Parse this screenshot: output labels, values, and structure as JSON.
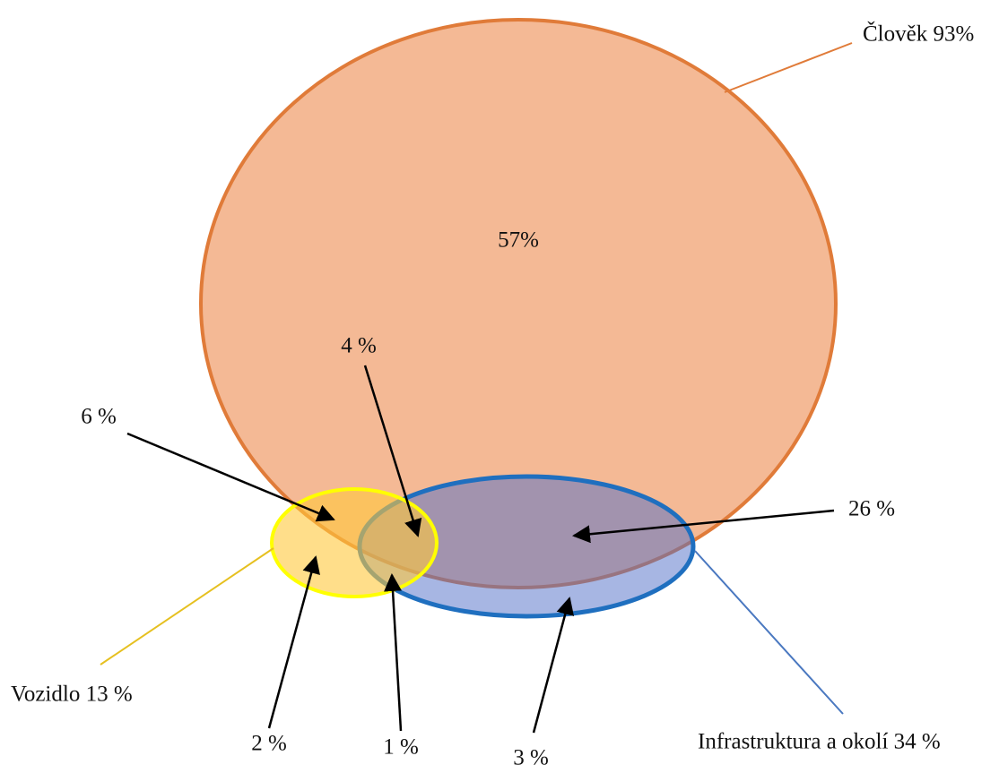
{
  "sets": [
    {
      "label": "Člověk 93%"
    },
    {
      "label": "Vozidlo  13 %"
    },
    {
      "label": "Infrastruktura a okolí  34 %"
    }
  ],
  "regions": [
    {
      "label": "57%"
    },
    {
      "label": "4 %"
    },
    {
      "label": "6 %"
    },
    {
      "label": "26 %"
    },
    {
      "label": "2 %"
    },
    {
      "label": "1 %"
    },
    {
      "label": "3 %"
    }
  ]
}
